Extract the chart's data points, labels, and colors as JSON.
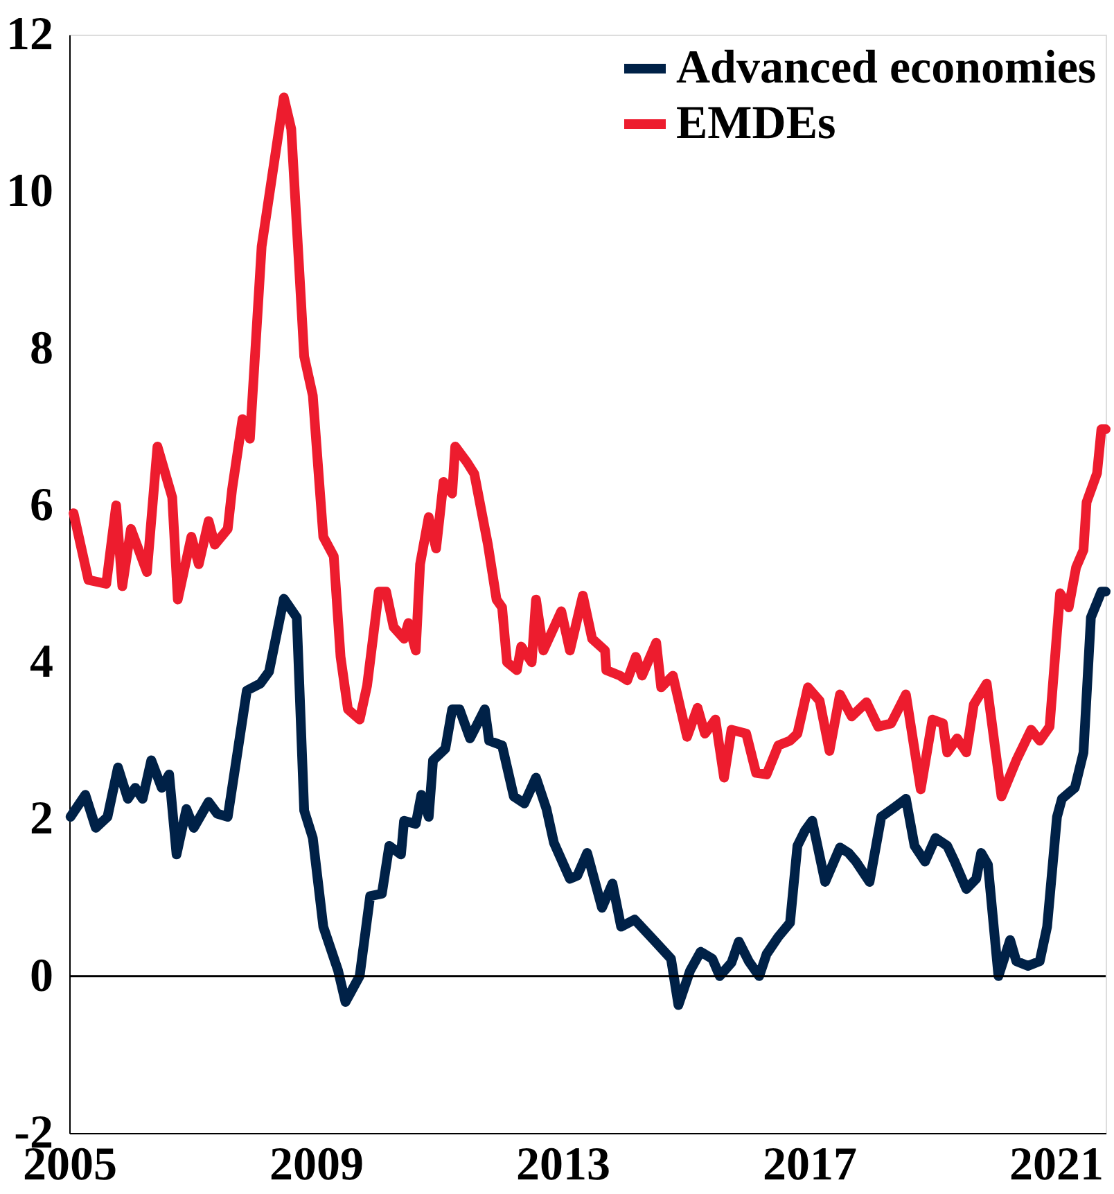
{
  "chart_data": {
    "type": "line",
    "xlim": [
      2005,
      2021.81
    ],
    "xticks": [
      2005,
      2009,
      2013,
      2017,
      2021
    ],
    "ylim": [
      -2,
      12
    ],
    "yticks": [
      -2,
      0,
      2,
      4,
      6,
      8,
      10,
      12
    ],
    "grid": false,
    "legend": "top right",
    "marker": "none",
    "line_style": "solid",
    "ref_lines": [
      {
        "axis": "y",
        "value": 0,
        "color": "#000000",
        "line_style": "solid"
      }
    ],
    "series": [
      {
        "name": "Advanced economies",
        "color": "#002147",
        "x": [
          2005.02,
          2005.26,
          2005.43,
          2005.62,
          2005.79,
          2005.95,
          2006.07,
          2006.19,
          2006.33,
          2006.5,
          2006.62,
          2006.74,
          2006.9,
          2007.02,
          2007.26,
          2007.4,
          2007.57,
          2007.88,
          2008.1,
          2008.24,
          2008.48,
          2008.69,
          2008.81,
          2008.95,
          2009.12,
          2009.36,
          2009.48,
          2009.71,
          2009.88,
          2010.07,
          2010.19,
          2010.38,
          2010.43,
          2010.62,
          2010.71,
          2010.83,
          2010.9,
          2011.1,
          2011.21,
          2011.33,
          2011.5,
          2011.74,
          2011.81,
          2012.02,
          2012.21,
          2012.38,
          2012.57,
          2012.74,
          2012.86,
          2013.12,
          2013.24,
          2013.4,
          2013.64,
          2013.81,
          2013.95,
          2014.17,
          2014.48,
          2014.76,
          2014.88,
          2015.07,
          2015.24,
          2015.43,
          2015.55,
          2015.74,
          2015.86,
          2016.02,
          2016.19,
          2016.31,
          2016.5,
          2016.69,
          2016.81,
          2016.93,
          2017.05,
          2017.26,
          2017.5,
          2017.64,
          2017.76,
          2017.98,
          2018.17,
          2018.4,
          2018.57,
          2018.71,
          2018.88,
          2019.05,
          2019.24,
          2019.36,
          2019.55,
          2019.71,
          2019.79,
          2019.9,
          2020.07,
          2020.26,
          2020.36,
          2020.55,
          2020.74,
          2020.86,
          2021.02,
          2021.1,
          2021.31,
          2021.45,
          2021.57,
          2021.74,
          2021.81
        ],
        "values": [
          2.03,
          2.31,
          1.89,
          2.03,
          2.66,
          2.26,
          2.4,
          2.26,
          2.75,
          2.4,
          2.57,
          1.55,
          2.13,
          1.89,
          2.22,
          2.07,
          2.03,
          3.64,
          3.73,
          3.88,
          4.81,
          4.57,
          2.11,
          1.76,
          0.63,
          0.07,
          -0.33,
          0.0,
          1.02,
          1.05,
          1.66,
          1.55,
          1.98,
          1.94,
          2.31,
          2.03,
          2.75,
          2.9,
          3.4,
          3.4,
          3.03,
          3.4,
          3.0,
          2.94,
          2.29,
          2.2,
          2.53,
          2.13,
          1.7,
          1.24,
          1.28,
          1.57,
          0.87,
          1.18,
          0.63,
          0.72,
          0.46,
          0.22,
          -0.37,
          0.07,
          0.31,
          0.22,
          0.0,
          0.17,
          0.44,
          0.19,
          0.0,
          0.28,
          0.5,
          0.68,
          1.66,
          1.85,
          1.98,
          1.2,
          1.64,
          1.57,
          1.46,
          1.2,
          2.03,
          2.16,
          2.26,
          1.66,
          1.46,
          1.76,
          1.66,
          1.46,
          1.11,
          1.24,
          1.57,
          1.42,
          0.0,
          0.46,
          0.19,
          0.13,
          0.19,
          0.63,
          2.03,
          2.26,
          2.4,
          2.85,
          4.57,
          4.9,
          4.9
        ]
      },
      {
        "name": "EMDEs",
        "color": "#ed1c2e",
        "x": [
          2005.07,
          2005.31,
          2005.6,
          2005.76,
          2005.86,
          2006.0,
          2006.26,
          2006.43,
          2006.67,
          2006.76,
          2006.98,
          2007.1,
          2007.26,
          2007.36,
          2007.57,
          2007.64,
          2007.81,
          2007.93,
          2008.12,
          2008.48,
          2008.6,
          2008.81,
          2008.95,
          2009.12,
          2009.29,
          2009.4,
          2009.52,
          2009.71,
          2009.83,
          2010.02,
          2010.14,
          2010.26,
          2010.43,
          2010.5,
          2010.62,
          2010.69,
          2010.83,
          2010.95,
          2011.07,
          2011.21,
          2011.26,
          2011.45,
          2011.57,
          2011.79,
          2011.93,
          2012.02,
          2012.1,
          2012.26,
          2012.33,
          2012.5,
          2012.57,
          2012.69,
          2012.98,
          2013.12,
          2013.33,
          2013.48,
          2013.69,
          2013.71,
          2013.93,
          2014.05,
          2014.19,
          2014.29,
          2014.52,
          2014.6,
          2014.79,
          2015.02,
          2015.19,
          2015.31,
          2015.48,
          2015.62,
          2015.74,
          2015.98,
          2016.14,
          2016.31,
          2016.5,
          2016.69,
          2016.81,
          2016.98,
          2017.17,
          2017.33,
          2017.5,
          2017.69,
          2017.93,
          2018.12,
          2018.33,
          2018.57,
          2018.81,
          2019.0,
          2019.17,
          2019.24,
          2019.4,
          2019.55,
          2019.67,
          2019.88,
          2020.12,
          2020.36,
          2020.6,
          2020.74,
          2020.9,
          2021.07,
          2021.21,
          2021.33,
          2021.45,
          2021.5,
          2021.67,
          2021.74,
          2021.81
        ],
        "values": [
          5.9,
          5.05,
          5.0,
          6.0,
          4.97,
          5.7,
          5.15,
          6.75,
          6.1,
          4.8,
          5.6,
          5.25,
          5.8,
          5.5,
          5.7,
          6.2,
          7.1,
          6.85,
          9.3,
          11.2,
          10.8,
          7.9,
          7.4,
          5.6,
          5.35,
          4.07,
          3.4,
          3.27,
          3.7,
          4.9,
          4.9,
          4.45,
          4.3,
          4.5,
          4.15,
          5.25,
          5.85,
          5.45,
          6.3,
          6.15,
          6.75,
          6.55,
          6.4,
          5.5,
          4.8,
          4.7,
          4.0,
          3.9,
          4.2,
          4.0,
          4.8,
          4.15,
          4.65,
          4.15,
          4.85,
          4.3,
          4.15,
          3.9,
          3.83,
          3.77,
          4.07,
          3.83,
          4.25,
          3.68,
          3.83,
          3.05,
          3.42,
          3.09,
          3.27,
          2.53,
          3.14,
          3.09,
          2.59,
          2.57,
          2.94,
          3.0,
          3.09,
          3.68,
          3.51,
          2.87,
          3.59,
          3.31,
          3.49,
          3.18,
          3.22,
          3.59,
          2.38,
          3.27,
          3.22,
          2.85,
          3.03,
          2.85,
          3.46,
          3.73,
          2.29,
          2.75,
          3.14,
          3.0,
          3.18,
          4.88,
          4.7,
          5.21,
          5.43,
          6.04,
          6.41,
          6.97,
          6.97
        ]
      }
    ]
  }
}
